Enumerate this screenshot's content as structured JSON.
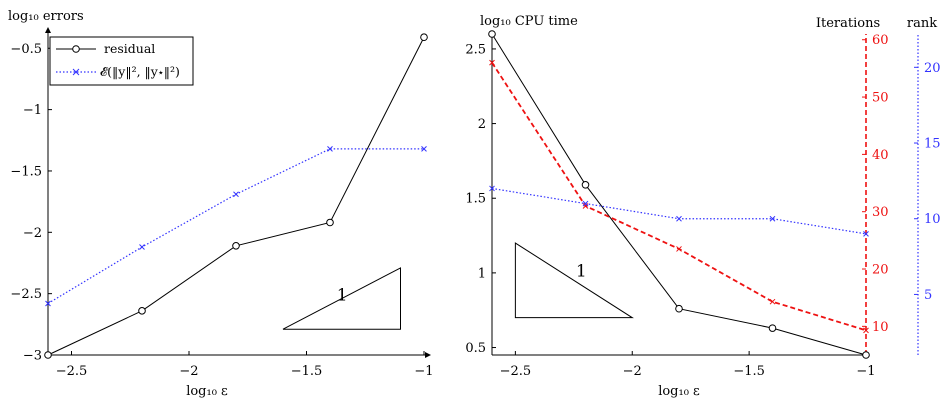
{
  "chart_data": [
    {
      "type": "line",
      "ylabel": "log₁₀ errors",
      "xlabel": "log₁₀ ε",
      "xlim": [
        -2.6,
        -1
      ],
      "ylim": [
        -3,
        -0.4
      ],
      "xticks": [
        -2.5,
        -2,
        -1.5,
        -1
      ],
      "xtick_labels": [
        "−2.5",
        "−2",
        "−1.5",
        "−1"
      ],
      "yticks": [
        -3,
        -2.5,
        -2,
        -1.5,
        -1,
        -0.5
      ],
      "ytick_labels": [
        "−3",
        "−2.5",
        "−2",
        "−1.5",
        "−1",
        "−0.5"
      ],
      "legend_position": "top-left",
      "series": [
        {
          "name": "residual",
          "color": "#000000",
          "style": "solid",
          "marker": "circle",
          "x": [
            -2.6,
            -2.2,
            -1.8,
            -1.4,
            -1
          ],
          "y": [
            -3.0,
            -2.64,
            -2.11,
            -1.92,
            -0.41
          ]
        },
        {
          "name": "𝓔(‖y‖², ‖y⋆‖²)",
          "color": "#3333ff",
          "style": "dotted",
          "marker": "x",
          "x": [
            -2.6,
            -2.2,
            -1.8,
            -1.4,
            -1
          ],
          "y": [
            -2.58,
            -2.12,
            -1.69,
            -1.32,
            -1.32
          ]
        }
      ],
      "slope_triangle": {
        "label": "1",
        "x": [
          -1.6,
          -1.1
        ],
        "y": [
          -2.79,
          -2.29
        ]
      }
    },
    {
      "type": "line",
      "ylabel": "log₁₀ CPU time",
      "xlabel": "log₁₀ ε",
      "xlim": [
        -2.6,
        -1
      ],
      "ylim": [
        0.45,
        2.6
      ],
      "xticks": [
        -2.5,
        -2,
        -1.5,
        -1
      ],
      "xtick_labels": [
        "−2.5",
        "−2",
        "−1.5",
        "−1"
      ],
      "yticks": [
        0.5,
        1,
        1.5,
        2,
        2.5
      ],
      "ytick_labels": [
        "0.5",
        "1",
        "1.5",
        "2",
        "2.5"
      ],
      "right_axes": [
        {
          "label": "Iterations",
          "color": "#ee1111",
          "ylim": [
            5,
            61
          ],
          "ticks": [
            10,
            20,
            30,
            40,
            50,
            60
          ],
          "tick_labels": [
            "10",
            "20",
            "30",
            "40",
            "50",
            "60"
          ]
        },
        {
          "label": "rank",
          "color": "#3333ff",
          "ylim": [
            1,
            22.2
          ],
          "ticks": [
            5,
            10,
            15,
            20
          ],
          "tick_labels": [
            "5",
            "10",
            "15",
            "20"
          ]
        }
      ],
      "series": [
        {
          "name": "CPU time",
          "color": "#000000",
          "style": "solid",
          "marker": "circle",
          "x": [
            -2.6,
            -2.2,
            -1.8,
            -1.4,
            -1
          ],
          "y": [
            2.6,
            1.59,
            0.76,
            0.63,
            0.45
          ]
        },
        {
          "name": "Iterations",
          "color": "#ee1111",
          "style": "dashed",
          "marker": "x",
          "axis": 0,
          "x": [
            -2.6,
            -2.2,
            -1.8,
            -1.4,
            -1
          ],
          "y": [
            56,
            31,
            23.5,
            14.3,
            9.3
          ]
        },
        {
          "name": "rank",
          "color": "#3333ff",
          "style": "dotted",
          "marker": "x",
          "axis": 1,
          "x": [
            -2.6,
            -2.2,
            -1.8,
            -1.4,
            -1
          ],
          "y": [
            12,
            11,
            10,
            10,
            9
          ]
        }
      ],
      "slope_triangle": {
        "label": "1",
        "x": [
          -2.5,
          -2.0
        ],
        "y": [
          0.7,
          1.2
        ]
      }
    }
  ]
}
